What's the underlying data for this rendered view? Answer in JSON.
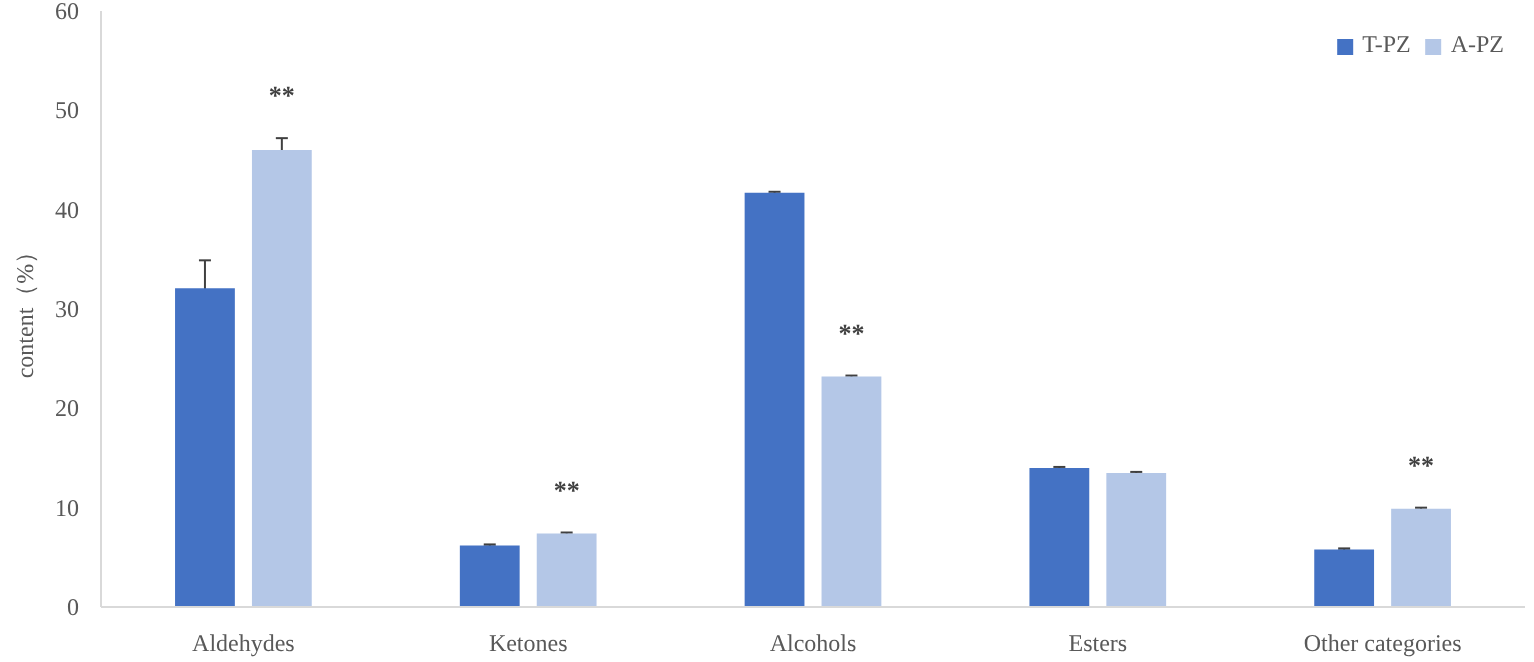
{
  "chart_data": {
    "type": "bar",
    "ylabel": "content（%）",
    "categories": [
      "Aldehydes",
      "Ketones",
      "Alcohols",
      "Esters",
      "Other categories"
    ],
    "series": [
      {
        "name": "T-PZ",
        "color": "#4472c4",
        "values": [
          32.1,
          6.2,
          41.7,
          14.0,
          5.8
        ],
        "errors": [
          2.8,
          0.1,
          0.1,
          0.1,
          0.1
        ]
      },
      {
        "name": "A-PZ",
        "color": "#b4c7e7",
        "values": [
          46.0,
          7.4,
          23.2,
          13.5,
          9.9
        ],
        "errors": [
          1.2,
          0.1,
          0.1,
          0.1,
          0.1
        ]
      }
    ],
    "annotations": [
      {
        "text": "**",
        "x": "Aldehydes",
        "y": 46.0
      },
      {
        "text": "**",
        "x": "Ketones",
        "y": 7.4
      },
      {
        "text": "**",
        "x": "Alcohols",
        "y": 23.2
      },
      {
        "text": "**",
        "x": "Other categories",
        "y": 9.9
      }
    ],
    "ylim": [
      0,
      60
    ],
    "yticks": [
      0,
      10,
      20,
      30,
      40,
      50,
      60
    ],
    "grid": false,
    "legend": "top right"
  }
}
